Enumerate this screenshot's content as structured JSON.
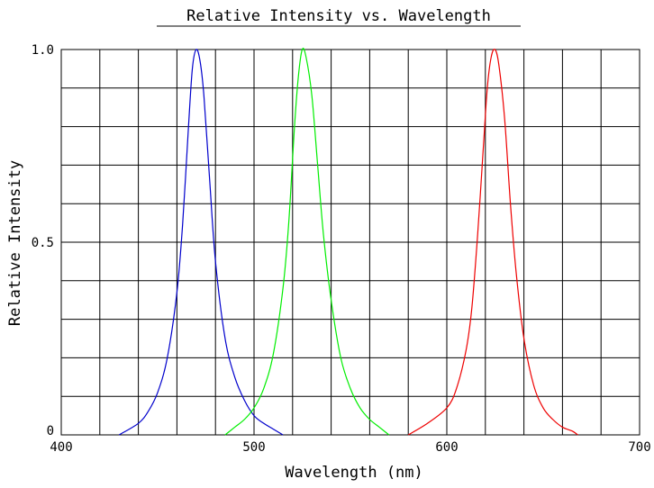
{
  "chart_data": {
    "type": "line",
    "title": "Relative Intensity vs. Wavelength",
    "xlabel": "Wavelength (nm)",
    "ylabel": "Relative Intensity",
    "xlim": [
      400,
      700
    ],
    "ylim": [
      0,
      1.0
    ],
    "x_ticks": [
      400,
      500,
      600,
      700
    ],
    "x_tick_labels": [
      "400",
      "500",
      "600",
      "700"
    ],
    "y_ticks": [
      0,
      0.5,
      1.0
    ],
    "y_tick_labels": [
      "0",
      "0.5",
      "1.0"
    ],
    "grid": true,
    "legend": "none",
    "series": [
      {
        "color": "#0000cc",
        "x": [
          430,
          440,
          445,
          450,
          455,
          460,
          463,
          466,
          468,
          470,
          472,
          474,
          477,
          480,
          485,
          490,
          495,
          500,
          505,
          510,
          515
        ],
        "y": [
          0.0,
          0.03,
          0.06,
          0.11,
          0.2,
          0.37,
          0.55,
          0.8,
          0.95,
          1.0,
          0.97,
          0.88,
          0.66,
          0.45,
          0.25,
          0.15,
          0.09,
          0.05,
          0.03,
          0.015,
          0.0
        ]
      },
      {
        "color": "#00ee00",
        "x": [
          485,
          490,
          495,
          500,
          505,
          510,
          515,
          518,
          521,
          523,
          525,
          527,
          530,
          533,
          536,
          540,
          545,
          550,
          555,
          560,
          565,
          570
        ],
        "y": [
          0.0,
          0.02,
          0.04,
          0.07,
          0.12,
          0.21,
          0.38,
          0.55,
          0.8,
          0.93,
          1.0,
          0.98,
          0.88,
          0.7,
          0.52,
          0.35,
          0.2,
          0.12,
          0.07,
          0.04,
          0.02,
          0.0
        ]
      },
      {
        "color": "#ee0000",
        "x": [
          580,
          590,
          600,
          605,
          610,
          613,
          616,
          619,
          621,
          623,
          625,
          627,
          630,
          633,
          636,
          640,
          645,
          650,
          655,
          660,
          665,
          668
        ],
        "y": [
          0.0,
          0.03,
          0.07,
          0.12,
          0.22,
          0.33,
          0.52,
          0.75,
          0.9,
          0.98,
          1.0,
          0.96,
          0.82,
          0.6,
          0.42,
          0.25,
          0.13,
          0.07,
          0.04,
          0.02,
          0.01,
          0.0
        ]
      }
    ]
  }
}
